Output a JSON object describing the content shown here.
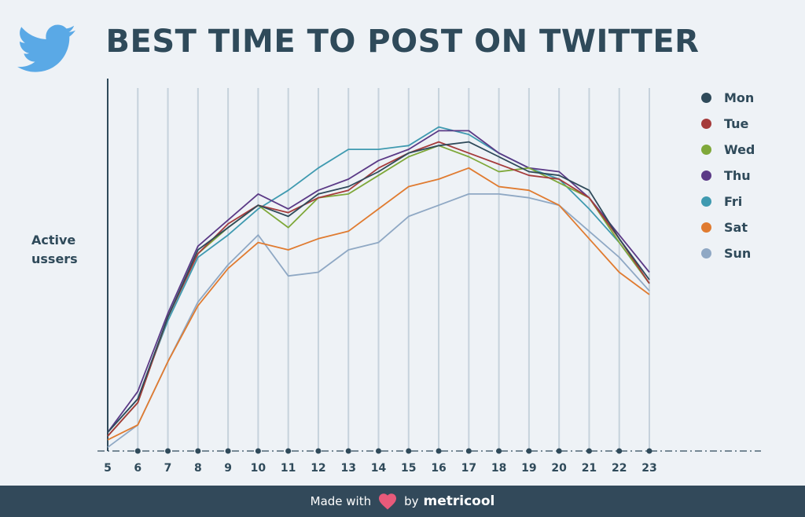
{
  "header": {
    "title": "BEST TIME TO POST ON TWITTER",
    "logo_icon": "twitter-bird-icon"
  },
  "footer": {
    "made_with": "Made with",
    "heart_icon": "heart-icon",
    "by": "by",
    "brand": "metricool"
  },
  "colors": {
    "background": "#eef2f6",
    "title": "#2f4a5a",
    "footer_bg": "#32495a",
    "twitter_blue": "#5aa9e6",
    "heart": "#e85a7a"
  },
  "chart_data": {
    "type": "line",
    "title": "BEST TIME TO POST ON TWITTER",
    "xlabel": "",
    "ylabel": "Active ussers",
    "x": [
      5,
      6,
      7,
      8,
      9,
      10,
      11,
      12,
      13,
      14,
      15,
      16,
      17,
      18,
      19,
      20,
      21,
      22,
      23
    ],
    "ylim": [
      0,
      100
    ],
    "grid": "vertical",
    "legend_position": "right",
    "series": [
      {
        "name": "Mon",
        "color": "#2f4a5a",
        "values": [
          5,
          14,
          36,
          54,
          60,
          66,
          63,
          69,
          71,
          75,
          80,
          82,
          83,
          79,
          75,
          74,
          70,
          57,
          46
        ]
      },
      {
        "name": "Tue",
        "color": "#a53b3b",
        "values": [
          4,
          13,
          36,
          53,
          61,
          66,
          64,
          68,
          70,
          76,
          80,
          83,
          80,
          77,
          74,
          73,
          68,
          57,
          45
        ]
      },
      {
        "name": "Wed",
        "color": "#7fa83a",
        "values": [
          4,
          13,
          36,
          53,
          60,
          66,
          60,
          68,
          69,
          74,
          79,
          82,
          79,
          75,
          76,
          72,
          68,
          56,
          45
        ]
      },
      {
        "name": "Thu",
        "color": "#5b3a86",
        "values": [
          5,
          16,
          37,
          55,
          62,
          69,
          65,
          70,
          73,
          78,
          81,
          86,
          86,
          80,
          76,
          75,
          68,
          58,
          48
        ]
      },
      {
        "name": "Fri",
        "color": "#3f9ab0",
        "values": [
          5,
          14,
          35,
          52,
          58,
          65,
          70,
          76,
          81,
          81,
          82,
          87,
          85,
          80,
          76,
          73,
          65,
          56,
          45
        ]
      },
      {
        "name": "Sat",
        "color": "#e07b30",
        "values": [
          3,
          7,
          24,
          39,
          49,
          56,
          54,
          57,
          59,
          65,
          71,
          73,
          76,
          71,
          70,
          66,
          57,
          48,
          42
        ]
      },
      {
        "name": "Sun",
        "color": "#8fa8c4",
        "values": [
          1,
          7,
          24,
          40,
          50,
          58,
          47,
          48,
          54,
          56,
          63,
          66,
          69,
          69,
          68,
          66,
          59,
          52,
          43
        ]
      }
    ]
  }
}
